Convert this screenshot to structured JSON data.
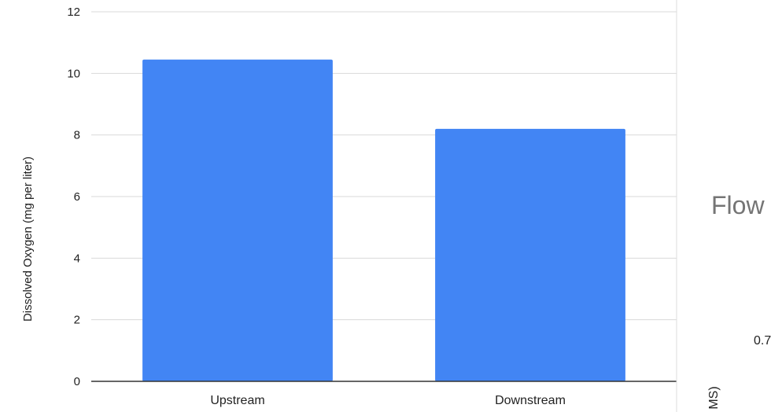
{
  "chart_data": {
    "type": "bar",
    "categories": [
      "Upstream",
      "Downstream"
    ],
    "values": [
      10.45,
      8.2
    ],
    "title": "",
    "xlabel": "",
    "ylabel": "Dissolved Oxygen (mg per liter)",
    "ylim": [
      0,
      12
    ],
    "yticks": [
      "0",
      "2",
      "4",
      "6",
      "8",
      "10",
      "12"
    ],
    "grid": true,
    "legend": "none",
    "bar_color": "#4285F4"
  },
  "overlapping_chart": {
    "title_fragment": "Flow",
    "label_fragment": "0.7",
    "axis_fragment": "MS)"
  }
}
